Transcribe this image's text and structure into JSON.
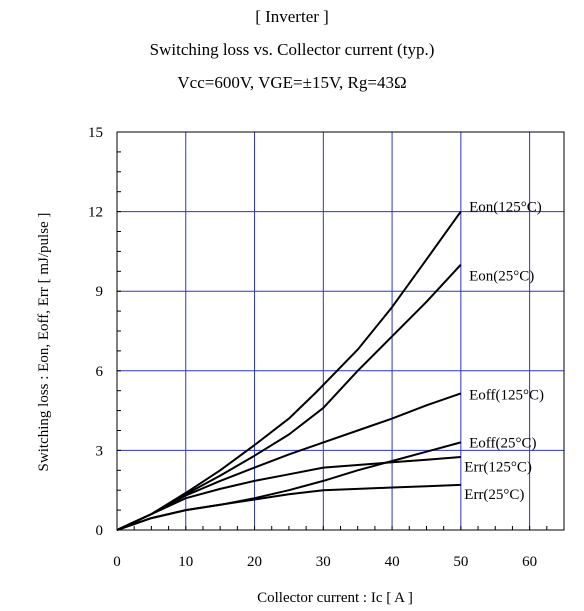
{
  "chart_data": {
    "type": "line",
    "title_lines": [
      "[ Inverter ]",
      "Switching loss  vs.  Collector current  (typ.)",
      "Vcc=600V, VGE=±15V, Rg=43Ω"
    ],
    "xlabel": "Collector current  :  Ic  [ A ]",
    "ylabel": "Switching loss  :  Eon, Eoff, Err  [ mJ/pulse ]",
    "xlim": [
      0,
      65
    ],
    "ylim": [
      0,
      15
    ],
    "x_ticks": [
      0,
      10,
      20,
      30,
      40,
      50,
      60
    ],
    "y_ticks": [
      0,
      3,
      6,
      9,
      12,
      15
    ],
    "x_tick_labels": [
      "0",
      "10",
      "20",
      "30",
      "40",
      "50",
      "60"
    ],
    "y_tick_labels": [
      "0",
      "3",
      "6",
      "9",
      "12",
      "15"
    ],
    "grid": true,
    "grid_color": "#2b35c8",
    "series": [
      {
        "name": "Eon(125°C)",
        "points": [
          [
            0,
            0
          ],
          [
            5,
            0.6
          ],
          [
            10,
            1.4
          ],
          [
            15,
            2.25
          ],
          [
            20,
            3.2
          ],
          [
            25,
            4.2
          ],
          [
            29,
            5.2
          ],
          [
            35,
            6.8
          ],
          [
            40,
            8.4
          ],
          [
            45,
            10.2
          ],
          [
            50,
            12.0
          ]
        ]
      },
      {
        "name": "Eon(25°C)",
        "points": [
          [
            0,
            0
          ],
          [
            5,
            0.6
          ],
          [
            10,
            1.35
          ],
          [
            15,
            2.05
          ],
          [
            20,
            2.8
          ],
          [
            25,
            3.6
          ],
          [
            30,
            4.6
          ],
          [
            35,
            6.0
          ],
          [
            40,
            7.3
          ],
          [
            45,
            8.6
          ],
          [
            50,
            10.0
          ]
        ]
      },
      {
        "name": "Eoff(125°C)",
        "points": [
          [
            0,
            0
          ],
          [
            5,
            0.6
          ],
          [
            10,
            1.3
          ],
          [
            15,
            1.85
          ],
          [
            20,
            2.35
          ],
          [
            25,
            2.85
          ],
          [
            30,
            3.3
          ],
          [
            35,
            3.75
          ],
          [
            40,
            4.2
          ],
          [
            45,
            4.7
          ],
          [
            50,
            5.15
          ]
        ]
      },
      {
        "name": "Eoff(25°C)",
        "points": [
          [
            0,
            0
          ],
          [
            5,
            0.45
          ],
          [
            10,
            0.75
          ],
          [
            15,
            0.95
          ],
          [
            20,
            1.2
          ],
          [
            25,
            1.5
          ],
          [
            30,
            1.85
          ],
          [
            35,
            2.25
          ],
          [
            40,
            2.6
          ],
          [
            45,
            2.95
          ],
          [
            50,
            3.3
          ]
        ]
      },
      {
        "name": "Err(125°C)",
        "points": [
          [
            0,
            0
          ],
          [
            5,
            0.6
          ],
          [
            10,
            1.2
          ],
          [
            15,
            1.55
          ],
          [
            20,
            1.85
          ],
          [
            25,
            2.1
          ],
          [
            30,
            2.35
          ],
          [
            35,
            2.45
          ],
          [
            40,
            2.55
          ],
          [
            45,
            2.65
          ],
          [
            50,
            2.75
          ]
        ]
      },
      {
        "name": "Err(25°C)",
        "points": [
          [
            0,
            0
          ],
          [
            5,
            0.45
          ],
          [
            10,
            0.75
          ],
          [
            15,
            0.95
          ],
          [
            20,
            1.15
          ],
          [
            25,
            1.35
          ],
          [
            30,
            1.5
          ],
          [
            35,
            1.55
          ],
          [
            40,
            1.6
          ],
          [
            45,
            1.65
          ],
          [
            50,
            1.7
          ]
        ]
      }
    ],
    "curve_labels": [
      {
        "text": "Eon(125°C)",
        "x": 51.2,
        "y": 12.2
      },
      {
        "text": "Eon(25°C)",
        "x": 51.2,
        "y": 9.6
      },
      {
        "text": "Eoff(125°C)",
        "x": 51.2,
        "y": 5.1
      },
      {
        "text": "Eoff(25°C)",
        "x": 51.2,
        "y": 3.3
      },
      {
        "text": "Err(125°C)",
        "x": 50.5,
        "y": 2.4
      },
      {
        "text": "Err(25°C)",
        "x": 50.5,
        "y": 1.35
      }
    ]
  }
}
